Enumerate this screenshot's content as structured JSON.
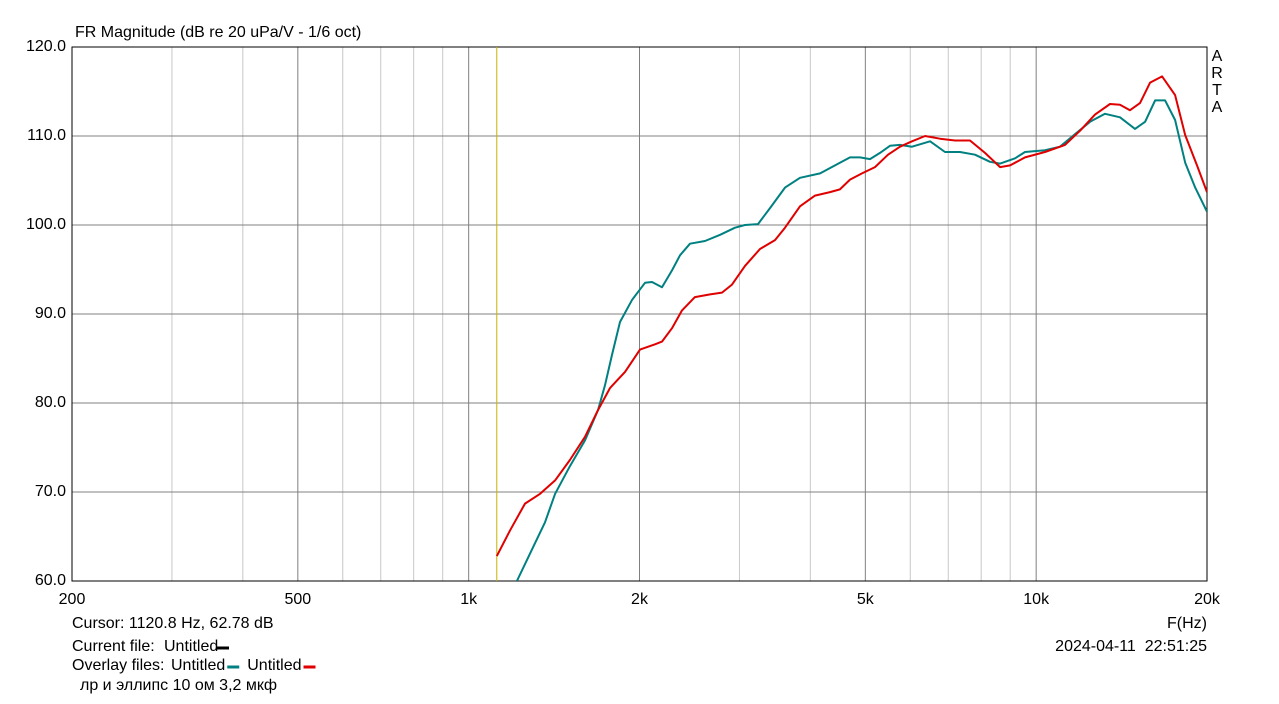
{
  "chart_data": {
    "type": "line",
    "title": "FR Magnitude (dB re 20 uPa/V - 1/6 oct)",
    "x_label": "F(Hz)",
    "watermark": "ARTA",
    "log_x": true,
    "grid": true,
    "xlim": [
      200,
      20000
    ],
    "ylim": [
      60,
      120
    ],
    "xticks": [
      200,
      500,
      {
        "value": 1000,
        "label": "1k"
      },
      {
        "value": 2000,
        "label": "2k"
      },
      {
        "value": 5000,
        "label": "5k"
      },
      {
        "value": 10000,
        "label": "10k"
      },
      {
        "value": 20000,
        "label": "20k"
      }
    ],
    "x_minor_grid": [
      300,
      400,
      600,
      700,
      800,
      900,
      3000,
      4000,
      6000,
      7000,
      8000,
      9000
    ],
    "yticks": [
      {
        "value": 60,
        "label": "60.0"
      },
      {
        "value": 70,
        "label": "70.0"
      },
      {
        "value": 80,
        "label": "80.0"
      },
      {
        "value": 90,
        "label": "90.0"
      },
      {
        "value": 100,
        "label": "100.0"
      },
      {
        "value": 110,
        "label": "110.0"
      },
      {
        "value": 120,
        "label": "120.0"
      }
    ],
    "cursor": {
      "label": "Cursor: 1120.8 Hz, 62.78 dB",
      "x": 1120.8,
      "y": 62.78,
      "color": "#c8b400"
    },
    "current_file_label": "Current file:",
    "current_file": "Untitled",
    "overlay_label": "Overlay files:",
    "note": "лр и эллипс 10 ом 3,2 мкф",
    "timestamp": "2024-04-11  22:51:25",
    "series": [
      {
        "name": "Untitled",
        "color": "#008080",
        "x": [
          1216,
          1283,
          1363,
          1420,
          1508,
          1603,
          1690,
          1739,
          1789,
          1848,
          1941,
          2045,
          2104,
          2191,
          2282,
          2357,
          2455,
          2609,
          2774,
          2947,
          3069,
          3235,
          3396,
          3609,
          3836,
          4161,
          4421,
          4699,
          4893,
          5096,
          5306,
          5526,
          5755,
          6043,
          6503,
          6908,
          7341,
          7802,
          8292,
          8637,
          9179,
          9557,
          10365,
          11015,
          11706,
          12443,
          13222,
          14052,
          14935,
          15556,
          16202,
          16875,
          17575,
          18304,
          19064,
          20000
        ],
        "values": [
          60,
          63.1,
          66.6,
          69.8,
          72.9,
          75.8,
          79.2,
          82,
          85.4,
          89.1,
          91.6,
          93.5,
          93.6,
          93.0,
          94.9,
          96.6,
          97.9,
          98.2,
          98.9,
          99.7,
          100,
          100.1,
          101.9,
          104.2,
          105.3,
          105.8,
          106.7,
          107.6,
          107.6,
          107.4,
          108.1,
          108.9,
          109,
          108.8,
          109.4,
          108.2,
          108.2,
          107.9,
          107.1,
          106.9,
          107.5,
          108.2,
          108.4,
          108.8,
          110.2,
          111.6,
          112.5,
          112.1,
          110.8,
          111.6,
          114,
          114,
          111.8,
          107,
          104.2,
          101.5
        ]
      },
      {
        "name": "Untitled",
        "color": "#e00000",
        "x": [
          1121,
          1183,
          1257,
          1336,
          1420,
          1508,
          1603,
          1690,
          1775,
          1886,
          2004,
          2130,
          2191,
          2282,
          2376,
          2504,
          2663,
          2795,
          2911,
          3069,
          3261,
          3466,
          3609,
          3836,
          4077,
          4332,
          4510,
          4699,
          4933,
          5200,
          5482,
          5755,
          6043,
          6372,
          6770,
          7194,
          7645,
          8126,
          8637,
          8995,
          9557,
          10365,
          11241,
          11950,
          12697,
          13494,
          14052,
          14635,
          15240,
          15875,
          16670,
          17575,
          18304,
          19201,
          20000
        ],
        "values": [
          62.8,
          65.7,
          68.7,
          69.8,
          71.3,
          73.6,
          76.2,
          79.2,
          81.7,
          83.5,
          86,
          86.6,
          86.9,
          88.4,
          90.4,
          91.9,
          92.2,
          92.4,
          93.3,
          95.4,
          97.3,
          98.3,
          99.7,
          102.1,
          103.3,
          103.7,
          104,
          105.1,
          105.8,
          106.5,
          107.9,
          108.8,
          109.4,
          110,
          109.7,
          109.5,
          109.5,
          108.1,
          106.5,
          106.7,
          107.6,
          108.2,
          109,
          110.6,
          112.4,
          113.6,
          113.5,
          112.9,
          113.7,
          116,
          116.7,
          114.6,
          110.1,
          106.7,
          103.7
        ]
      }
    ]
  }
}
